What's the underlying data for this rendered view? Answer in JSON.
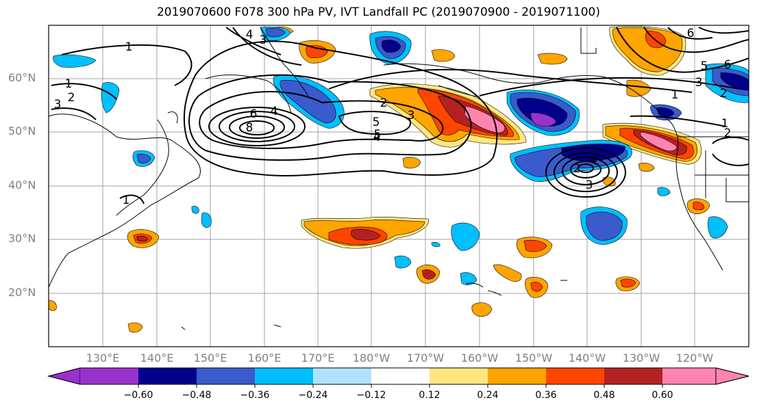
{
  "title": "2019070600 F078 300 hPa PV, IVT Landfall PC (2019070900 - 2019071100)",
  "lat_labels": [
    "60°N",
    "50°N",
    "40°N",
    "30°N",
    "20°N"
  ],
  "lon_labels": [
    "130°E",
    "140°E",
    "150°E",
    "160°E",
    "170°E",
    "180°W",
    "170°W",
    "160°W",
    "150°W",
    "140°W",
    "130°W",
    "120°W"
  ],
  "colorbar": {
    "ticks": [
      "−0.60",
      "−0.48",
      "−0.36",
      "−0.24",
      "−0.12",
      "0.12",
      "0.24",
      "0.36",
      "0.48",
      "0.60"
    ],
    "colors": [
      "#9932cc",
      "#00008b",
      "#3a5bcc",
      "#00bfff",
      "#b0e2ff",
      "#ffffff",
      "#ffe680",
      "#ffa500",
      "#ff4500",
      "#b22222",
      "#ff85b0"
    ]
  },
  "contour_labels": [
    "1",
    "1",
    "2",
    "3",
    "4",
    "3",
    "6",
    "4",
    "8",
    "5",
    "2",
    "3",
    "5",
    "4",
    "6",
    "5",
    "6",
    "3",
    "1",
    "2",
    "1",
    "2",
    "2",
    "4",
    "3",
    "1"
  ],
  "colors": {
    "purple": "#9932cc",
    "navy": "#00008b",
    "blue": "#3a5bcc",
    "sky": "#00bfff",
    "lightblue": "#b0e2ff",
    "yellow": "#ffe680",
    "orange": "#ffa500",
    "redorange": "#ff4500",
    "darkred": "#b22222",
    "pink": "#ff85b0"
  }
}
